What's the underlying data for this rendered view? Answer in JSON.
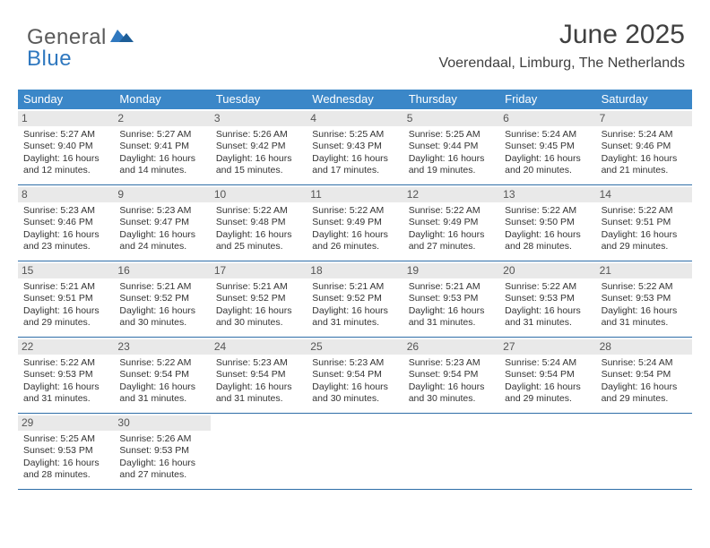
{
  "brand": {
    "part1": "General",
    "part2": "Blue"
  },
  "title": "June 2025",
  "subtitle": "Voerendaal, Limburg, The Netherlands",
  "colors": {
    "header_bg": "#3b87c8",
    "header_text": "#ffffff",
    "divider": "#2f6ea8",
    "numrow_bg": "#e9e9e9",
    "body_text": "#333333",
    "brand_gray": "#5a5a5a",
    "brand_blue": "#2f78bf"
  },
  "day_names": [
    "Sunday",
    "Monday",
    "Tuesday",
    "Wednesday",
    "Thursday",
    "Friday",
    "Saturday"
  ],
  "weeks": [
    [
      {
        "n": "1",
        "sr": "Sunrise: 5:27 AM",
        "ss": "Sunset: 9:40 PM",
        "d1": "Daylight: 16 hours",
        "d2": "and 12 minutes."
      },
      {
        "n": "2",
        "sr": "Sunrise: 5:27 AM",
        "ss": "Sunset: 9:41 PM",
        "d1": "Daylight: 16 hours",
        "d2": "and 14 minutes."
      },
      {
        "n": "3",
        "sr": "Sunrise: 5:26 AM",
        "ss": "Sunset: 9:42 PM",
        "d1": "Daylight: 16 hours",
        "d2": "and 15 minutes."
      },
      {
        "n": "4",
        "sr": "Sunrise: 5:25 AM",
        "ss": "Sunset: 9:43 PM",
        "d1": "Daylight: 16 hours",
        "d2": "and 17 minutes."
      },
      {
        "n": "5",
        "sr": "Sunrise: 5:25 AM",
        "ss": "Sunset: 9:44 PM",
        "d1": "Daylight: 16 hours",
        "d2": "and 19 minutes."
      },
      {
        "n": "6",
        "sr": "Sunrise: 5:24 AM",
        "ss": "Sunset: 9:45 PM",
        "d1": "Daylight: 16 hours",
        "d2": "and 20 minutes."
      },
      {
        "n": "7",
        "sr": "Sunrise: 5:24 AM",
        "ss": "Sunset: 9:46 PM",
        "d1": "Daylight: 16 hours",
        "d2": "and 21 minutes."
      }
    ],
    [
      {
        "n": "8",
        "sr": "Sunrise: 5:23 AM",
        "ss": "Sunset: 9:46 PM",
        "d1": "Daylight: 16 hours",
        "d2": "and 23 minutes."
      },
      {
        "n": "9",
        "sr": "Sunrise: 5:23 AM",
        "ss": "Sunset: 9:47 PM",
        "d1": "Daylight: 16 hours",
        "d2": "and 24 minutes."
      },
      {
        "n": "10",
        "sr": "Sunrise: 5:22 AM",
        "ss": "Sunset: 9:48 PM",
        "d1": "Daylight: 16 hours",
        "d2": "and 25 minutes."
      },
      {
        "n": "11",
        "sr": "Sunrise: 5:22 AM",
        "ss": "Sunset: 9:49 PM",
        "d1": "Daylight: 16 hours",
        "d2": "and 26 minutes."
      },
      {
        "n": "12",
        "sr": "Sunrise: 5:22 AM",
        "ss": "Sunset: 9:49 PM",
        "d1": "Daylight: 16 hours",
        "d2": "and 27 minutes."
      },
      {
        "n": "13",
        "sr": "Sunrise: 5:22 AM",
        "ss": "Sunset: 9:50 PM",
        "d1": "Daylight: 16 hours",
        "d2": "and 28 minutes."
      },
      {
        "n": "14",
        "sr": "Sunrise: 5:22 AM",
        "ss": "Sunset: 9:51 PM",
        "d1": "Daylight: 16 hours",
        "d2": "and 29 minutes."
      }
    ],
    [
      {
        "n": "15",
        "sr": "Sunrise: 5:21 AM",
        "ss": "Sunset: 9:51 PM",
        "d1": "Daylight: 16 hours",
        "d2": "and 29 minutes."
      },
      {
        "n": "16",
        "sr": "Sunrise: 5:21 AM",
        "ss": "Sunset: 9:52 PM",
        "d1": "Daylight: 16 hours",
        "d2": "and 30 minutes."
      },
      {
        "n": "17",
        "sr": "Sunrise: 5:21 AM",
        "ss": "Sunset: 9:52 PM",
        "d1": "Daylight: 16 hours",
        "d2": "and 30 minutes."
      },
      {
        "n": "18",
        "sr": "Sunrise: 5:21 AM",
        "ss": "Sunset: 9:52 PM",
        "d1": "Daylight: 16 hours",
        "d2": "and 31 minutes."
      },
      {
        "n": "19",
        "sr": "Sunrise: 5:21 AM",
        "ss": "Sunset: 9:53 PM",
        "d1": "Daylight: 16 hours",
        "d2": "and 31 minutes."
      },
      {
        "n": "20",
        "sr": "Sunrise: 5:22 AM",
        "ss": "Sunset: 9:53 PM",
        "d1": "Daylight: 16 hours",
        "d2": "and 31 minutes."
      },
      {
        "n": "21",
        "sr": "Sunrise: 5:22 AM",
        "ss": "Sunset: 9:53 PM",
        "d1": "Daylight: 16 hours",
        "d2": "and 31 minutes."
      }
    ],
    [
      {
        "n": "22",
        "sr": "Sunrise: 5:22 AM",
        "ss": "Sunset: 9:53 PM",
        "d1": "Daylight: 16 hours",
        "d2": "and 31 minutes."
      },
      {
        "n": "23",
        "sr": "Sunrise: 5:22 AM",
        "ss": "Sunset: 9:54 PM",
        "d1": "Daylight: 16 hours",
        "d2": "and 31 minutes."
      },
      {
        "n": "24",
        "sr": "Sunrise: 5:23 AM",
        "ss": "Sunset: 9:54 PM",
        "d1": "Daylight: 16 hours",
        "d2": "and 31 minutes."
      },
      {
        "n": "25",
        "sr": "Sunrise: 5:23 AM",
        "ss": "Sunset: 9:54 PM",
        "d1": "Daylight: 16 hours",
        "d2": "and 30 minutes."
      },
      {
        "n": "26",
        "sr": "Sunrise: 5:23 AM",
        "ss": "Sunset: 9:54 PM",
        "d1": "Daylight: 16 hours",
        "d2": "and 30 minutes."
      },
      {
        "n": "27",
        "sr": "Sunrise: 5:24 AM",
        "ss": "Sunset: 9:54 PM",
        "d1": "Daylight: 16 hours",
        "d2": "and 29 minutes."
      },
      {
        "n": "28",
        "sr": "Sunrise: 5:24 AM",
        "ss": "Sunset: 9:54 PM",
        "d1": "Daylight: 16 hours",
        "d2": "and 29 minutes."
      }
    ],
    [
      {
        "n": "29",
        "sr": "Sunrise: 5:25 AM",
        "ss": "Sunset: 9:53 PM",
        "d1": "Daylight: 16 hours",
        "d2": "and 28 minutes."
      },
      {
        "n": "30",
        "sr": "Sunrise: 5:26 AM",
        "ss": "Sunset: 9:53 PM",
        "d1": "Daylight: 16 hours",
        "d2": "and 27 minutes."
      },
      {
        "empty": true
      },
      {
        "empty": true
      },
      {
        "empty": true
      },
      {
        "empty": true
      },
      {
        "empty": true
      }
    ]
  ]
}
